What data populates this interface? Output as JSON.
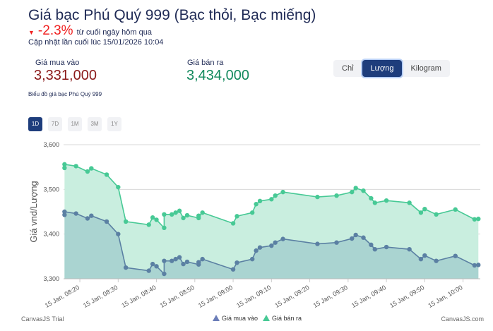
{
  "header": {
    "title": "Giá bạc Phú Quý 999 (Bạc thỏi, Bạc miếng)",
    "change_pct": "-2.3%",
    "change_text": "từ cuối ngày hôm qua",
    "updated": "Cập nhật lần cuối lúc 15/01/2026 10:04",
    "buy_label": "Giá mua vào",
    "buy_value": "3,331,000",
    "sell_label": "Giá bán ra",
    "sell_value": "3,434,000",
    "chart_caption": "Biểu đồ giá bạc Phú Quý 999"
  },
  "units": [
    {
      "label": "Chỉ",
      "active": false
    },
    {
      "label": "Lượng",
      "active": true
    },
    {
      "label": "Kilogram",
      "active": false
    }
  ],
  "ranges": [
    {
      "label": "1D",
      "active": true
    },
    {
      "label": "7D",
      "active": false
    },
    {
      "label": "1M",
      "active": false
    },
    {
      "label": "3M",
      "active": false
    },
    {
      "label": "1Y",
      "active": false
    }
  ],
  "footer": {
    "left": "CanvasJS Trial",
    "right": "CanvasJS.com"
  },
  "colors": {
    "buy_line": "#5b80a3",
    "buy_fill": "#aad4d1",
    "sell_line": "#47c995",
    "sell_fill": "#c9eedf",
    "buy_legend": "#6b7db8"
  },
  "chart_data": {
    "type": "area",
    "ylabel": "Giá vnd/Lượng",
    "xlabel": "",
    "ylim": [
      3300,
      3600
    ],
    "yticks": [
      "3,300",
      "3,400",
      "3,500",
      "3,600"
    ],
    "xticks": [
      "15 Jan, 08:20",
      "15 Jan, 08:30",
      "15 Jan, 08:40",
      "15 Jan, 08:50",
      "15 Jan, 09:00",
      "15 Jan, 09:10",
      "15 Jan, 09:20",
      "15 Jan, 09:30",
      "15 Jan, 09:40",
      "15 Jan, 09:50",
      "15 Jan, 10:00"
    ],
    "xlim": [
      "08:16",
      "10:04"
    ],
    "grid": true,
    "legend_position": "bottom",
    "x": [
      "08:16",
      "08:16",
      "08:19",
      "08:22",
      "08:23",
      "08:27",
      "08:30",
      "08:32",
      "08:38",
      "08:39",
      "08:40",
      "08:42",
      "08:42",
      "08:44",
      "08:45",
      "08:46",
      "08:47",
      "08:48",
      "08:51",
      "08:51",
      "08:52",
      "09:00",
      "09:01",
      "09:05",
      "09:06",
      "09:07",
      "09:10",
      "09:11",
      "09:13",
      "09:22",
      "09:27",
      "09:31",
      "09:32",
      "09:34",
      "09:36",
      "09:37",
      "09:40",
      "09:46",
      "09:49",
      "09:50",
      "09:53",
      "09:58",
      "10:03",
      "10:04"
    ],
    "series": [
      {
        "name": "Giá mua vào",
        "values": [
          3443,
          3450,
          3446,
          3435,
          3441,
          3428,
          3400,
          3325,
          3318,
          3333,
          3328,
          3311,
          3340,
          3340,
          3344,
          3348,
          3333,
          3338,
          3332,
          3337,
          3344,
          3321,
          3336,
          3344,
          3363,
          3370,
          3374,
          3381,
          3389,
          3378,
          3381,
          3390,
          3398,
          3392,
          3376,
          3366,
          3371,
          3366,
          3344,
          3352,
          3340,
          3351,
          3330,
          3331
        ]
      },
      {
        "name": "Giá bán ra",
        "values": [
          3548,
          3556,
          3552,
          3540,
          3547,
          3533,
          3505,
          3428,
          3421,
          3437,
          3432,
          3414,
          3444,
          3444,
          3448,
          3452,
          3436,
          3442,
          3436,
          3441,
          3448,
          3424,
          3440,
          3448,
          3467,
          3474,
          3478,
          3486,
          3494,
          3483,
          3486,
          3494,
          3503,
          3497,
          3480,
          3470,
          3475,
          3470,
          3448,
          3456,
          3444,
          3455,
          3433,
          3434
        ]
      }
    ]
  }
}
